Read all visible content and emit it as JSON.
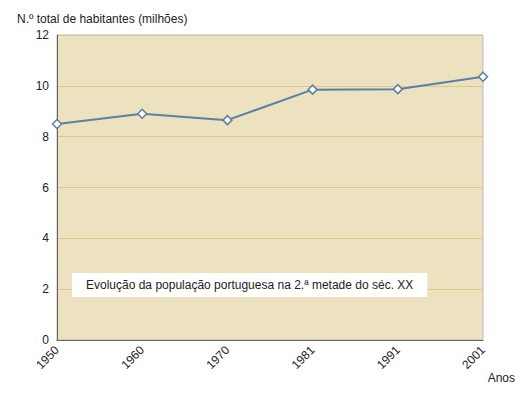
{
  "chart_data": {
    "type": "line",
    "title": "Evolução da população portuguesa na 2.ª metade do séc. XX",
    "x_label": "Anos",
    "y_label": "N.º total de habitantes (milhões)",
    "categories": [
      "1950",
      "1960",
      "1970",
      "1981",
      "1991",
      "2001"
    ],
    "values": [
      8.5,
      8.9,
      8.65,
      9.85,
      9.87,
      10.36
    ],
    "color": "#5b7fa6",
    "marker": "diamond",
    "ylim": [
      0,
      12
    ],
    "yticks": [
      0,
      2,
      4,
      6,
      8,
      10,
      12
    ],
    "grid": true
  }
}
